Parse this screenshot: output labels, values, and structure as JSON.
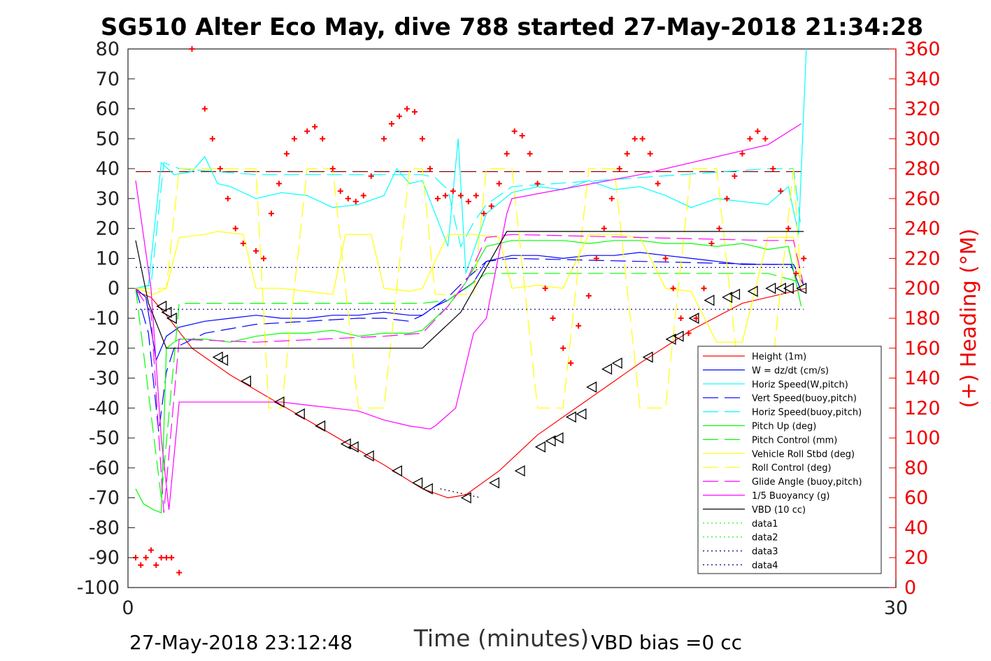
{
  "chart_data": {
    "type": "line",
    "title": "SG510 Alter Eco May, dive 788 started 27-May-2018 21:34:28",
    "xlabel": "Time (minutes)",
    "ylabel_right": "(+) Heading (°M)",
    "footer_left": "27-May-2018 23:12:48",
    "footer_right": "VBD bias =0 cc",
    "xlim": [
      0,
      30
    ],
    "ylim": [
      -100,
      80
    ],
    "y2lim": [
      0,
      360
    ],
    "xticks": [
      "0",
      "30"
    ],
    "yticks": [
      "80",
      "70",
      "60",
      "50",
      "40",
      "30",
      "20",
      "10",
      "0",
      "-10",
      "-20",
      "-30",
      "-40",
      "-50",
      "-60",
      "-70",
      "-80",
      "-90",
      "-100"
    ],
    "y2ticks": [
      "360",
      "340",
      "320",
      "300",
      "280",
      "260",
      "240",
      "220",
      "200",
      "180",
      "160",
      "140",
      "120",
      "100",
      "80",
      "60",
      "40",
      "20",
      "0"
    ],
    "grid": false,
    "legend_position": "bottom-right",
    "colors": {
      "red": "#ff0000",
      "blue": "#0000ff",
      "cyan": "#00ffff",
      "green": "#00ff00",
      "yellow": "#ffff00",
      "magenta": "#ff00ff",
      "black": "#000000",
      "axis_right": "#ff0000"
    },
    "series": [
      {
        "name": "Height (1m)",
        "color": "#ff0000",
        "style": "solid",
        "x": [
          0.3,
          0.9,
          1.5,
          2.5,
          4,
          6,
          8,
          10,
          11.5,
          12.5,
          13.2,
          14.5,
          16,
          18,
          20,
          22,
          24,
          25.5,
          26.5
        ],
        "y": [
          -1,
          -3,
          -9,
          -20,
          -29,
          -39,
          -49,
          -59,
          -67,
          -70,
          -69,
          -61,
          -49,
          -37,
          -25,
          -14,
          -5,
          -2,
          0
        ]
      },
      {
        "name": "W = dz/dt (cm/s)",
        "color": "#0000ff",
        "style": "solid",
        "x": [
          0.3,
          0.7,
          1.1,
          1.5,
          2,
          3,
          4,
          5,
          6,
          7,
          8,
          9,
          10,
          11,
          11.5,
          12,
          12.5,
          13,
          13.5,
          14,
          15,
          16,
          17,
          18,
          19,
          20,
          21,
          22,
          23,
          24,
          25,
          25.9,
          26.3
        ],
        "y": [
          0,
          -3,
          -24,
          -16,
          -13,
          -11,
          -10,
          -9,
          -10,
          -10,
          -9,
          -9,
          -8,
          -9,
          -9,
          -6,
          -4,
          -1,
          2,
          9,
          11,
          11,
          10,
          11,
          11,
          12,
          11,
          10,
          9,
          8,
          8,
          8,
          -1
        ]
      },
      {
        "name": "Horiz Speed(W,pitch)",
        "color": "#00ffff",
        "style": "solid",
        "x": [
          0.3,
          0.8,
          1.3,
          1.8,
          2.5,
          3,
          3.5,
          4,
          5,
          6,
          7,
          8,
          9,
          10,
          10.5,
          11,
          11.5,
          12,
          12.5,
          12.9,
          13.2,
          14,
          15,
          16,
          17,
          18,
          19,
          20,
          21,
          22,
          23,
          24,
          25,
          25.8,
          26.2,
          26.5
        ],
        "y": [
          0,
          1,
          42,
          38,
          39,
          44,
          35,
          34,
          30,
          32,
          31,
          27,
          28,
          31,
          40,
          35,
          36,
          25,
          14,
          50,
          5,
          25,
          32,
          34,
          33,
          36,
          33,
          34,
          31,
          27,
          30,
          29,
          28,
          34,
          18,
          80
        ]
      },
      {
        "name": "Vert Speed(buoy,pitch)",
        "color": "#0000ff",
        "style": "dashed",
        "x": [
          0.3,
          0.8,
          1.2,
          1.5,
          1.8,
          3,
          5,
          7,
          9,
          10,
          11,
          11.5,
          12.5,
          13.2,
          14,
          15,
          20,
          25,
          26,
          26.4
        ],
        "y": [
          0,
          -15,
          -48,
          -28,
          -20,
          -15,
          -12,
          -11,
          -10,
          -10,
          -11,
          -9,
          -3,
          3,
          9,
          10,
          9,
          8,
          8,
          1
        ]
      },
      {
        "name": "Horiz Speed(buoy,pitch)",
        "color": "#00ffff",
        "style": "dashed",
        "x": [
          0.3,
          0.9,
          1.4,
          2,
          5,
          10,
          11.5,
          12,
          12.5,
          13,
          13.5,
          14,
          15,
          20,
          25,
          26,
          26.3
        ],
        "y": [
          0,
          1,
          42,
          40,
          38,
          38,
          38,
          37,
          33,
          14,
          22,
          28,
          34,
          37,
          40,
          40,
          20
        ]
      },
      {
        "name": "Pitch Up (deg)",
        "color": "#00ff00",
        "style": "solid",
        "x": [
          0.3,
          0.6,
          1.0,
          1.3,
          1.5,
          1.8,
          2,
          3,
          4,
          5,
          6,
          7,
          8,
          9,
          10,
          11,
          11.5,
          12,
          12.5,
          13.2,
          14,
          15,
          16,
          17,
          18,
          19,
          20,
          21,
          22,
          23,
          24,
          25,
          25.8,
          26.3
        ],
        "y": [
          -67,
          -72,
          -74,
          -75,
          -20,
          -18,
          -17,
          -17,
          -18,
          -16,
          -15,
          -15,
          -14,
          -16,
          -15,
          -15,
          -14,
          -10,
          -6,
          2,
          14,
          16,
          16,
          16,
          15,
          16,
          16,
          15,
          15,
          14,
          15,
          13,
          14,
          -6
        ]
      },
      {
        "name": "Pitch Control (mm)",
        "color": "#00ff00",
        "style": "dashed",
        "x": [
          0.3,
          1.3,
          2,
          6,
          10,
          11.5,
          12.5,
          13.2,
          14,
          20,
          25,
          26.3
        ],
        "y": [
          0,
          -70,
          -5,
          -5,
          -5,
          -5,
          -4,
          0,
          5,
          5,
          5,
          2
        ]
      },
      {
        "name": "Vehicle Roll Stbd (deg)",
        "color": "#ffff00",
        "style": "solid",
        "x": [
          0.3,
          1.0,
          1.5,
          2,
          3,
          3.5,
          4.5,
          5,
          6,
          7,
          8,
          8.5,
          9.5,
          10,
          11,
          11.5,
          12.5,
          13.5,
          14.5,
          15,
          16,
          17,
          18,
          19,
          20,
          21,
          22,
          23,
          24,
          25,
          26,
          26.3
        ],
        "y": [
          0,
          -2,
          0,
          17,
          18,
          19,
          18,
          0,
          0,
          -1,
          -2,
          18,
          18,
          0,
          -1,
          0,
          18,
          18,
          17,
          0,
          1,
          0,
          18,
          18,
          17,
          0,
          -1,
          -18,
          -18,
          17,
          17,
          0
        ]
      },
      {
        "name": "Roll Control (deg)",
        "color": "#ffff00",
        "style": "dashed",
        "x": [
          0.3,
          1.5,
          2,
          3,
          4,
          5,
          5.5,
          6,
          7,
          8,
          9,
          10,
          11,
          11.5,
          12,
          13.5,
          14,
          15,
          16,
          17,
          18,
          19,
          20,
          21,
          22,
          23,
          24,
          25,
          26,
          26.3
        ],
        "y": [
          0,
          0,
          40,
          40,
          40,
          40,
          -40,
          -40,
          40,
          40,
          -40,
          -40,
          40,
          40,
          -2,
          -2,
          40,
          40,
          -40,
          -40,
          40,
          40,
          -40,
          -40,
          40,
          40,
          -40,
          -40,
          40,
          0
        ]
      },
      {
        "name": "Glide Angle (buoy,pitch)",
        "color": "#ff00ff",
        "style": "dashed",
        "x": [
          0.3,
          0.9,
          1.4,
          2,
          5,
          10,
          11.5,
          12.5,
          13.2,
          14,
          15,
          20,
          25,
          26,
          26.4
        ],
        "y": [
          0,
          -8,
          -75,
          -17,
          -18,
          -16,
          -15,
          -6,
          2,
          17,
          18,
          17,
          16,
          16,
          1
        ]
      },
      {
        "name": "1/5 Buoyancy (g)",
        "color": "#ff00ff",
        "style": "solid",
        "x": [
          0.3,
          0.9,
          1.3,
          1.6,
          2,
          3,
          4,
          5,
          6,
          7,
          8,
          9,
          10,
          11,
          11.8,
          12,
          12.8,
          13.5,
          14,
          14.8,
          15,
          20,
          25,
          26.3
        ],
        "y": [
          36,
          0,
          -50,
          -74,
          -38,
          -38,
          -38,
          -38,
          -38,
          -39,
          -40,
          -41,
          -44,
          -46,
          -47,
          -46,
          -40,
          -15,
          -10,
          25,
          30,
          38,
          48,
          55
        ]
      },
      {
        "name": "VBD (10 cc)",
        "color": "#000000",
        "style": "solid",
        "x": [
          0.3,
          0.8,
          1.5,
          2,
          11.5,
          13,
          14.8,
          15,
          26.4
        ],
        "y": [
          16,
          -5,
          -20,
          -20,
          -20,
          -8,
          19,
          19,
          19
        ]
      },
      {
        "name": "data1",
        "color": "#00ff00",
        "style": "dotted",
        "x": [],
        "y": []
      },
      {
        "name": "data2",
        "color": "#00ff00",
        "style": "dotted",
        "x": [],
        "y": []
      },
      {
        "name": "data3",
        "color": "#000080",
        "style": "dotted",
        "x": [
          0.3,
          26.4
        ],
        "y": [
          7,
          7
        ]
      },
      {
        "name": "data4",
        "color": "#000080",
        "style": "dotted",
        "x": [
          0.3,
          26.4
        ],
        "y": [
          -7,
          -7
        ]
      }
    ],
    "extra_lines": [
      {
        "color": "#8b0000",
        "style": "dashed",
        "x": [
          0.3,
          26.4
        ],
        "y": [
          39,
          39
        ]
      },
      {
        "color": "#000000",
        "style": "dotted",
        "x": [
          12.2,
          13.8
        ],
        "y": [
          -67,
          -70
        ]
      }
    ],
    "heading": {
      "name": "Heading",
      "axis": "right",
      "x": [
        0.3,
        0.5,
        0.7,
        0.9,
        1.1,
        1.3,
        1.5,
        1.7,
        2,
        2.5,
        3,
        3.3,
        3.6,
        3.9,
        4.2,
        4.5,
        5,
        5.3,
        5.6,
        5.9,
        6.2,
        6.5,
        7,
        7.3,
        7.6,
        8,
        8.3,
        8.6,
        8.9,
        9.2,
        9.5,
        10,
        10.3,
        10.6,
        10.9,
        11.2,
        11.5,
        11.8,
        12.1,
        12.4,
        12.7,
        13,
        13.3,
        13.6,
        13.9,
        14.2,
        14.5,
        14.8,
        15.1,
        15.4,
        15.7,
        16,
        16.3,
        16.6,
        17,
        17.3,
        17.6,
        18,
        18.3,
        18.6,
        18.9,
        19.2,
        19.5,
        19.8,
        20.1,
        20.4,
        20.7,
        21,
        21.3,
        21.6,
        21.9,
        22.2,
        22.5,
        22.8,
        23.1,
        23.4,
        23.7,
        24,
        24.3,
        24.6,
        24.9,
        25.2,
        25.5,
        25.8,
        26.1,
        26.4
      ],
      "y": [
        20,
        15,
        20,
        25,
        15,
        20,
        20,
        20,
        10,
        360,
        320,
        300,
        280,
        260,
        240,
        230,
        225,
        220,
        250,
        270,
        290,
        300,
        305,
        308,
        300,
        280,
        265,
        260,
        258,
        262,
        275,
        300,
        310,
        315,
        320,
        318,
        300,
        280,
        260,
        262,
        265,
        262,
        258,
        262,
        250,
        255,
        270,
        290,
        305,
        302,
        290,
        270,
        200,
        180,
        160,
        150,
        175,
        195,
        220,
        240,
        260,
        280,
        290,
        300,
        300,
        290,
        270,
        220,
        200,
        180,
        170,
        180,
        200,
        230,
        240,
        260,
        275,
        290,
        300,
        305,
        300,
        280,
        265,
        240,
        210,
        220
      ]
    },
    "triangles": {
      "x": [
        1.3,
        1.5,
        1.7,
        3.5,
        3.7,
        4.6,
        5.9,
        6.7,
        7.5,
        8.5,
        8.8,
        9.4,
        10.5,
        11.3,
        11.7,
        13.2,
        14.3,
        15.3,
        16.1,
        16.5,
        16.8,
        17.3,
        17.7,
        18.1,
        18.7,
        19.1,
        20.3,
        21.2,
        21.5,
        22.1,
        22.7,
        23.4,
        23.7,
        24.4,
        25.1,
        25.5,
        25.8,
        26.3
      ],
      "y": [
        -6,
        -8,
        -10,
        -23,
        -24,
        -31,
        -38,
        -42,
        -46,
        -52,
        -53,
        -56,
        -61,
        -65,
        -67,
        -70,
        -65,
        -61,
        -53,
        -51,
        -50,
        -43,
        -42,
        -33,
        -27,
        -25,
        -23,
        -17,
        -16,
        -10,
        -4,
        -3,
        -2,
        -1,
        0,
        0,
        0,
        0
      ]
    }
  }
}
